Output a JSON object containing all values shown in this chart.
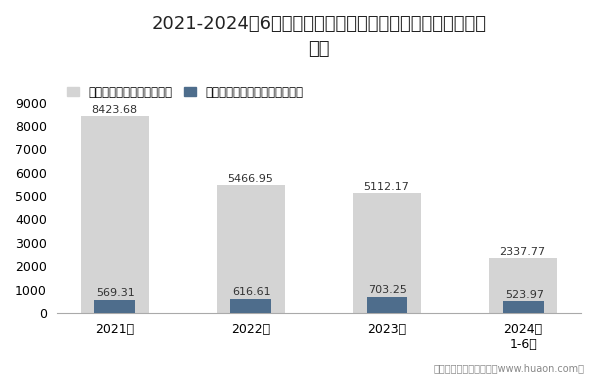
{
  "title_line1": "2021-2024年6月浙江省房地产商品住宅及商品住宅现房销售",
  "title_line2": "面积",
  "categories": [
    "2021年",
    "2022年",
    "2023年",
    "2024年\n1-6月"
  ],
  "series1_label": "商品住宅销售面积（万㎡）",
  "series2_label": "商品住宅现房销售面积（万㎡）",
  "series1_values": [
    8423.68,
    5466.95,
    5112.17,
    2337.77
  ],
  "series2_values": [
    569.31,
    616.61,
    703.25,
    523.97
  ],
  "series1_color": "#d4d4d4",
  "series2_color": "#4e6d8c",
  "bar_width": 0.5,
  "ylim": [
    0,
    9000
  ],
  "yticks": [
    0,
    1000,
    2000,
    3000,
    4000,
    5000,
    6000,
    7000,
    8000,
    9000
  ],
  "footnote": "制图：华经产业研究院（www.huaon.com）",
  "title_fontsize": 13,
  "legend_fontsize": 8.5,
  "tick_fontsize": 9,
  "label_fontsize": 8,
  "background_color": "#ffffff"
}
